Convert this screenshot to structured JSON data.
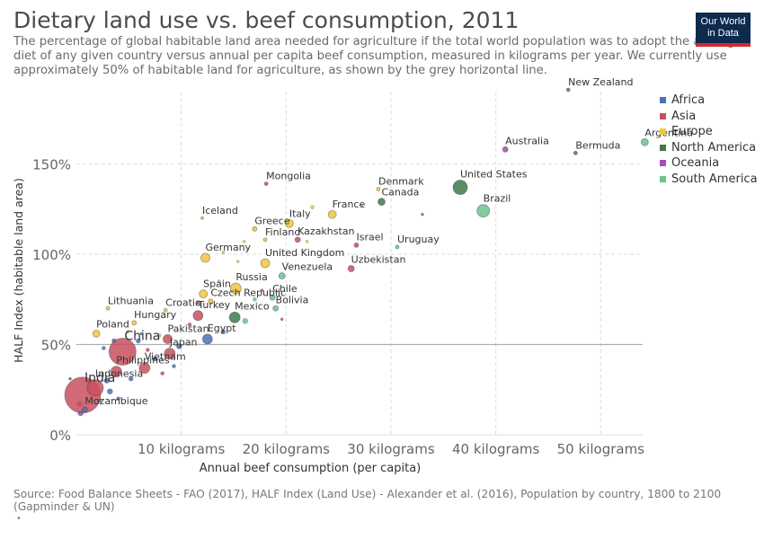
{
  "header": {
    "title": "Dietary land use vs. beef consumption, 2011",
    "subtitle": "The percentage of global habitable land area needed for agriculture if the total world population was to adopt the average diet of any given country versus annual per capita beef consumption, measured in kilograms per year. We currently use approximately 50% of habitable land for agriculture, as shown by the grey horizontal line.",
    "logo_text": "Our World in Data"
  },
  "footer": {
    "source": "Source: Food Balance Sheets - FAO (2017), HALF Index (Land Use) - Alexander et al. (2016), Population by country, 1800 to 2100 (Gapminder & UN)",
    "marker": "•"
  },
  "legend": {
    "items": [
      {
        "label": "Africa",
        "color": "#4a6fbf"
      },
      {
        "label": "Asia",
        "color": "#c9505e"
      },
      {
        "label": "Europe",
        "color": "#f0c73a"
      },
      {
        "label": "North America",
        "color": "#3f7a4b"
      },
      {
        "label": "Oceania",
        "color": "#a44fb2"
      },
      {
        "label": "South America",
        "color": "#6cc48f"
      }
    ]
  },
  "chart_data": {
    "type": "scatter",
    "xlabel": "Annual beef consumption (per capita)",
    "ylabel": "HALF Index (habitable land area)",
    "xlim": [
      0,
      54
    ],
    "ylim": [
      0,
      190
    ],
    "x_ticks": [
      10,
      20,
      30,
      40,
      50
    ],
    "x_tick_labels": [
      "10 kilograms",
      "20 kilograms",
      "30 kilograms",
      "40 kilograms",
      "50 kilograms"
    ],
    "y_ticks": [
      0,
      50,
      100,
      150
    ],
    "y_tick_labels": [
      "0%",
      "50%",
      "100%",
      "150%"
    ],
    "reference_line": {
      "y": 50,
      "color": "#b0b0b0"
    },
    "grid": "dashed",
    "legend_position": "right",
    "points": [
      {
        "label": "New Zealand",
        "x": 46.9,
        "y": 191,
        "region": "Oceania",
        "r": 2
      },
      {
        "label": "Australia",
        "x": 40.9,
        "y": 158,
        "region": "Oceania",
        "r": 3
      },
      {
        "label": "Argentina",
        "x": 54.2,
        "y": 162,
        "region": "South America",
        "r": 4
      },
      {
        "label": "Bermuda",
        "x": 47.6,
        "y": 156,
        "region": "North America",
        "r": 2
      },
      {
        "label": "United States",
        "x": 36.6,
        "y": 137,
        "region": "North America",
        "r": 8
      },
      {
        "label": "Brazil",
        "x": 38.8,
        "y": 124,
        "region": "South America",
        "r": 7
      },
      {
        "label": "Mongolia",
        "x": 18.1,
        "y": 139,
        "region": "Asia",
        "r": 2
      },
      {
        "label": "Denmark",
        "x": 28.8,
        "y": 136,
        "region": "Europe",
        "r": 2
      },
      {
        "label": "Canada",
        "x": 29.1,
        "y": 129,
        "region": "North America",
        "r": 4
      },
      {
        "label": "France",
        "x": 24.4,
        "y": 122,
        "region": "Europe",
        "r": 4.5
      },
      {
        "label": "Iceland",
        "x": 12.0,
        "y": 120,
        "region": "Europe",
        "r": 1.5
      },
      {
        "label": "Italy",
        "x": 20.3,
        "y": 117,
        "region": "Europe",
        "r": 4.5
      },
      {
        "label": "Greece",
        "x": 17.0,
        "y": 114,
        "region": "Europe",
        "r": 2.5
      },
      {
        "label": "Finland",
        "x": 18.0,
        "y": 108,
        "region": "Europe",
        "r": 2
      },
      {
        "label": "Kazakhstan",
        "x": 21.1,
        "y": 108,
        "region": "Asia",
        "r": 3
      },
      {
        "label": "Israel",
        "x": 26.7,
        "y": 105,
        "region": "Asia",
        "r": 2.5
      },
      {
        "label": "Uruguay",
        "x": 30.6,
        "y": 104,
        "region": "South America",
        "r": 2
      },
      {
        "label": "Germany",
        "x": 12.3,
        "y": 98,
        "region": "Europe",
        "r": 5
      },
      {
        "label": "United Kingdom",
        "x": 18.0,
        "y": 95,
        "region": "Europe",
        "r": 5
      },
      {
        "label": "Uzbekistan",
        "x": 26.2,
        "y": 92,
        "region": "Asia",
        "r": 3.5
      },
      {
        "label": "Venezuela",
        "x": 19.6,
        "y": 88,
        "region": "South America",
        "r": 3.5
      },
      {
        "label": "Russia",
        "x": 15.2,
        "y": 81,
        "region": "Europe",
        "r": 6
      },
      {
        "label": "Spain",
        "x": 12.1,
        "y": 78,
        "region": "Europe",
        "r": 4.5
      },
      {
        "label": "Chile",
        "x": 18.7,
        "y": 76,
        "region": "South America",
        "r": 3
      },
      {
        "label": "Czech Republic",
        "x": 12.8,
        "y": 74,
        "region": "Europe",
        "r": 2.5
      },
      {
        "label": "Lithuania",
        "x": 3.0,
        "y": 70,
        "region": "Europe",
        "r": 2
      },
      {
        "label": "Croatia",
        "x": 8.5,
        "y": 69,
        "region": "Europe",
        "r": 2
      },
      {
        "label": "Bolivia",
        "x": 19.0,
        "y": 70,
        "region": "South America",
        "r": 3
      },
      {
        "label": "Hungary",
        "x": 5.5,
        "y": 62,
        "region": "Europe",
        "r": 2.5
      },
      {
        "label": "Turkey",
        "x": 11.6,
        "y": 66,
        "region": "Asia",
        "r": 5.5
      },
      {
        "label": "Mexico",
        "x": 15.1,
        "y": 65,
        "region": "North America",
        "r": 6
      },
      {
        "label": "Poland",
        "x": 1.9,
        "y": 56,
        "region": "Europe",
        "r": 4
      },
      {
        "label": "Pakistan",
        "x": 8.7,
        "y": 53,
        "region": "Asia",
        "r": 5
      },
      {
        "label": "Egypt",
        "x": 12.5,
        "y": 53,
        "region": "Africa",
        "r": 5.5
      },
      {
        "label": "China",
        "x": 4.4,
        "y": 46,
        "region": "Asia",
        "r": 15
      },
      {
        "label": "Japan",
        "x": 8.9,
        "y": 45,
        "region": "Asia",
        "r": 6
      },
      {
        "label": "Vietnam",
        "x": 6.5,
        "y": 37,
        "region": "Asia",
        "r": 6
      },
      {
        "label": "India",
        "x": 0.6,
        "y": 22,
        "region": "Asia",
        "r": 20
      },
      {
        "label": "Philippines",
        "x": 3.8,
        "y": 35,
        "region": "Asia",
        "r": 6
      },
      {
        "label": "Indonesia",
        "x": 1.8,
        "y": 26,
        "region": "Asia",
        "r": 9
      },
      {
        "label": "Mozambique",
        "x": 0.8,
        "y": 14,
        "region": "Africa",
        "r": 3
      }
    ],
    "unlabeled_points": [
      {
        "x": 33.0,
        "y": 122,
        "region": "Oceania",
        "r": 1.5
      },
      {
        "x": 22.5,
        "y": 126,
        "region": "Europe",
        "r": 2
      },
      {
        "x": 27.2,
        "y": 127,
        "region": "Europe",
        "r": 1.5
      },
      {
        "x": 16.0,
        "y": 107,
        "region": "Europe",
        "r": 1.5
      },
      {
        "x": 22.0,
        "y": 107,
        "region": "Europe",
        "r": 1.5
      },
      {
        "x": 14.0,
        "y": 101,
        "region": "Europe",
        "r": 1.5
      },
      {
        "x": 15.4,
        "y": 96,
        "region": "Europe",
        "r": 1.5
      },
      {
        "x": 17.7,
        "y": 80,
        "region": "Asia",
        "r": 1.5
      },
      {
        "x": 13.6,
        "y": 85,
        "region": "Europe",
        "r": 1.5
      },
      {
        "x": 17.0,
        "y": 75,
        "region": "South America",
        "r": 2
      },
      {
        "x": 16.1,
        "y": 63,
        "region": "South America",
        "r": 3
      },
      {
        "x": 14.0,
        "y": 57,
        "region": "Africa",
        "r": 2.5
      },
      {
        "x": 10.8,
        "y": 61,
        "region": "Asia",
        "r": 2
      },
      {
        "x": 9.8,
        "y": 49,
        "region": "Africa",
        "r": 3
      },
      {
        "x": 7.9,
        "y": 55,
        "region": "Europe",
        "r": 2
      },
      {
        "x": 5.9,
        "y": 52,
        "region": "Africa",
        "r": 2.5
      },
      {
        "x": 4.9,
        "y": 57,
        "region": "Europe",
        "r": 1.5
      },
      {
        "x": 6.2,
        "y": 56,
        "region": "Africa",
        "r": 1.5
      },
      {
        "x": 3.6,
        "y": 52,
        "region": "Africa",
        "r": 2.5
      },
      {
        "x": 2.6,
        "y": 48,
        "region": "Africa",
        "r": 2
      },
      {
        "x": 7.5,
        "y": 42,
        "region": "Africa",
        "r": 2.5
      },
      {
        "x": 9.3,
        "y": 38,
        "region": "Africa",
        "r": 2
      },
      {
        "x": 5.2,
        "y": 31,
        "region": "Africa",
        "r": 2.5
      },
      {
        "x": 2.9,
        "y": 30,
        "region": "Africa",
        "r": 3
      },
      {
        "x": 3.2,
        "y": 24,
        "region": "Africa",
        "r": 3
      },
      {
        "x": 1.2,
        "y": 29,
        "region": "Africa",
        "r": 2.5
      },
      {
        "x": 0.3,
        "y": 17,
        "region": "Africa",
        "r": 3
      },
      {
        "x": -0.6,
        "y": 31,
        "region": "North America",
        "r": 1.5
      },
      {
        "x": 0.4,
        "y": 12,
        "region": "Africa",
        "r": 3
      },
      {
        "x": 2.2,
        "y": 19,
        "region": "Africa",
        "r": 2
      },
      {
        "x": 4.0,
        "y": 20,
        "region": "Africa",
        "r": 2
      },
      {
        "x": 6.8,
        "y": 47,
        "region": "Asia",
        "r": 2
      },
      {
        "x": 8.2,
        "y": 34,
        "region": "Asia",
        "r": 2
      },
      {
        "x": 11.5,
        "y": 73,
        "region": "Asia",
        "r": 1.5
      },
      {
        "x": 19.6,
        "y": 64,
        "region": "Asia",
        "r": 1.5
      }
    ]
  }
}
